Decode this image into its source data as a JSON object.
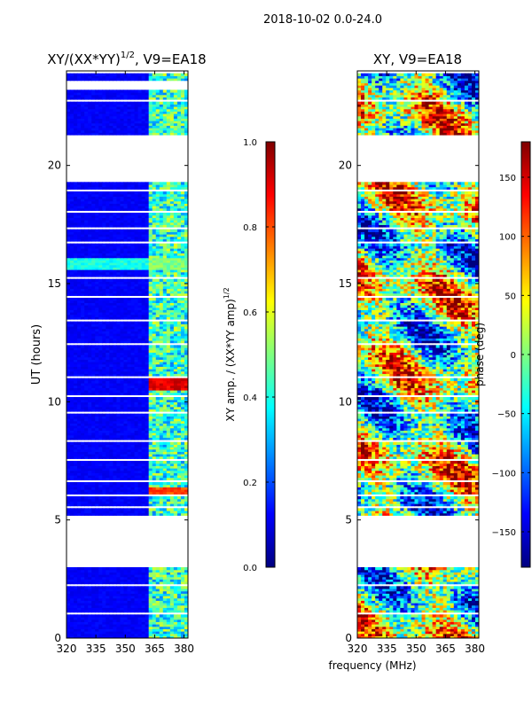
{
  "figure": {
    "suptitle": "2018-10-02 0.0-24.0",
    "xlabel": "frequency (MHz)"
  },
  "colors": {
    "jet": [
      "#00007f",
      "#0000ff",
      "#007fff",
      "#00ffff",
      "#7fff7f",
      "#ffff00",
      "#ff7f00",
      "#ff0000",
      "#7f0000"
    ]
  },
  "chart_data": [
    {
      "type": "heatmap",
      "title_base": "XY/(XX*YY)",
      "title_exp": "1/2",
      "title_tail": ", V9=EA18",
      "xlabel": "",
      "ylabel": "UT (hours)",
      "xlim": [
        320,
        382
      ],
      "ylim": [
        0,
        24
      ],
      "xticks": [
        320,
        335,
        350,
        365,
        380
      ],
      "yticks": [
        0,
        5,
        10,
        15,
        20
      ],
      "colorbar": {
        "label_base": "XY amp. / (XX*YY amp)",
        "label_exp": "1/2",
        "range": [
          0.0,
          1.0
        ],
        "ticks": [
          "0.0",
          "0.2",
          "0.4",
          "0.6",
          "0.8",
          "1.0"
        ],
        "tick_values": [
          0.0,
          0.2,
          0.4,
          0.6,
          0.8,
          1.0
        ]
      },
      "gaps_hours": [
        [
          2.95,
          5.2
        ],
        [
          19.3,
          21.3
        ],
        [
          23.2,
          23.6
        ],
        [
          0.2,
          0.25
        ],
        [
          1.0,
          1.1
        ],
        [
          1.6,
          1.65
        ],
        [
          2.2,
          2.27
        ],
        [
          5.55,
          5.62
        ],
        [
          6.05,
          6.1
        ],
        [
          6.65,
          6.75
        ],
        [
          7.55,
          7.62
        ],
        [
          8.35,
          8.45
        ],
        [
          9.5,
          9.56
        ],
        [
          10.2,
          10.26
        ],
        [
          11.0,
          11.05
        ],
        [
          12.4,
          12.46
        ],
        [
          13.45,
          13.55
        ],
        [
          14.45,
          14.52
        ],
        [
          15.2,
          15.3
        ],
        [
          16.7,
          16.8
        ],
        [
          17.3,
          17.4
        ],
        [
          18.05,
          18.12
        ],
        [
          18.9,
          18.97
        ],
        [
          21.8,
          21.85
        ],
        [
          22.3,
          22.35
        ],
        [
          22.7,
          22.78
        ],
        [
          23.9,
          24.0
        ]
      ],
      "band_mhz": [
        362,
        382
      ],
      "bright_events": [
        {
          "hours": [
            10.5,
            11.1
          ],
          "value": 0.85
        },
        {
          "hours": [
            6.1,
            6.4
          ],
          "value": 0.75
        },
        {
          "hours": [
            15.6,
            16.1
          ],
          "value": 0.45
        }
      ]
    },
    {
      "type": "heatmap",
      "title": "XY, V9=EA18",
      "xlabel": "",
      "ylabel": "",
      "xlim": [
        320,
        382
      ],
      "ylim": [
        0,
        24
      ],
      "xticks": [
        320,
        335,
        350,
        365,
        380
      ],
      "yticks": [
        0,
        5,
        10,
        15,
        20
      ],
      "colorbar": {
        "label": "phase (deg)",
        "range": [
          -180,
          180
        ],
        "ticks": [
          "−150",
          "−100",
          "−50",
          "0",
          "50",
          "100",
          "150"
        ],
        "tick_values": [
          -150,
          -100,
          -50,
          0,
          50,
          100,
          150
        ]
      },
      "gaps_hours": [
        [
          2.95,
          5.2
        ],
        [
          19.3,
          21.3
        ],
        [
          0.2,
          0.25
        ],
        [
          1.0,
          1.1
        ],
        [
          1.6,
          1.65
        ],
        [
          2.2,
          2.27
        ],
        [
          5.55,
          5.62
        ],
        [
          6.05,
          6.1
        ],
        [
          6.65,
          6.75
        ],
        [
          7.55,
          7.62
        ],
        [
          8.35,
          8.45
        ],
        [
          9.5,
          9.56
        ],
        [
          10.2,
          10.26
        ],
        [
          11.0,
          11.05
        ],
        [
          12.4,
          12.46
        ],
        [
          13.45,
          13.55
        ],
        [
          14.45,
          14.52
        ],
        [
          15.2,
          15.3
        ],
        [
          16.7,
          16.8
        ],
        [
          17.3,
          17.4
        ],
        [
          18.05,
          18.12
        ],
        [
          18.9,
          18.97
        ],
        [
          21.8,
          21.85
        ],
        [
          22.3,
          22.35
        ],
        [
          22.7,
          22.78
        ],
        [
          23.9,
          24.0
        ]
      ]
    }
  ]
}
